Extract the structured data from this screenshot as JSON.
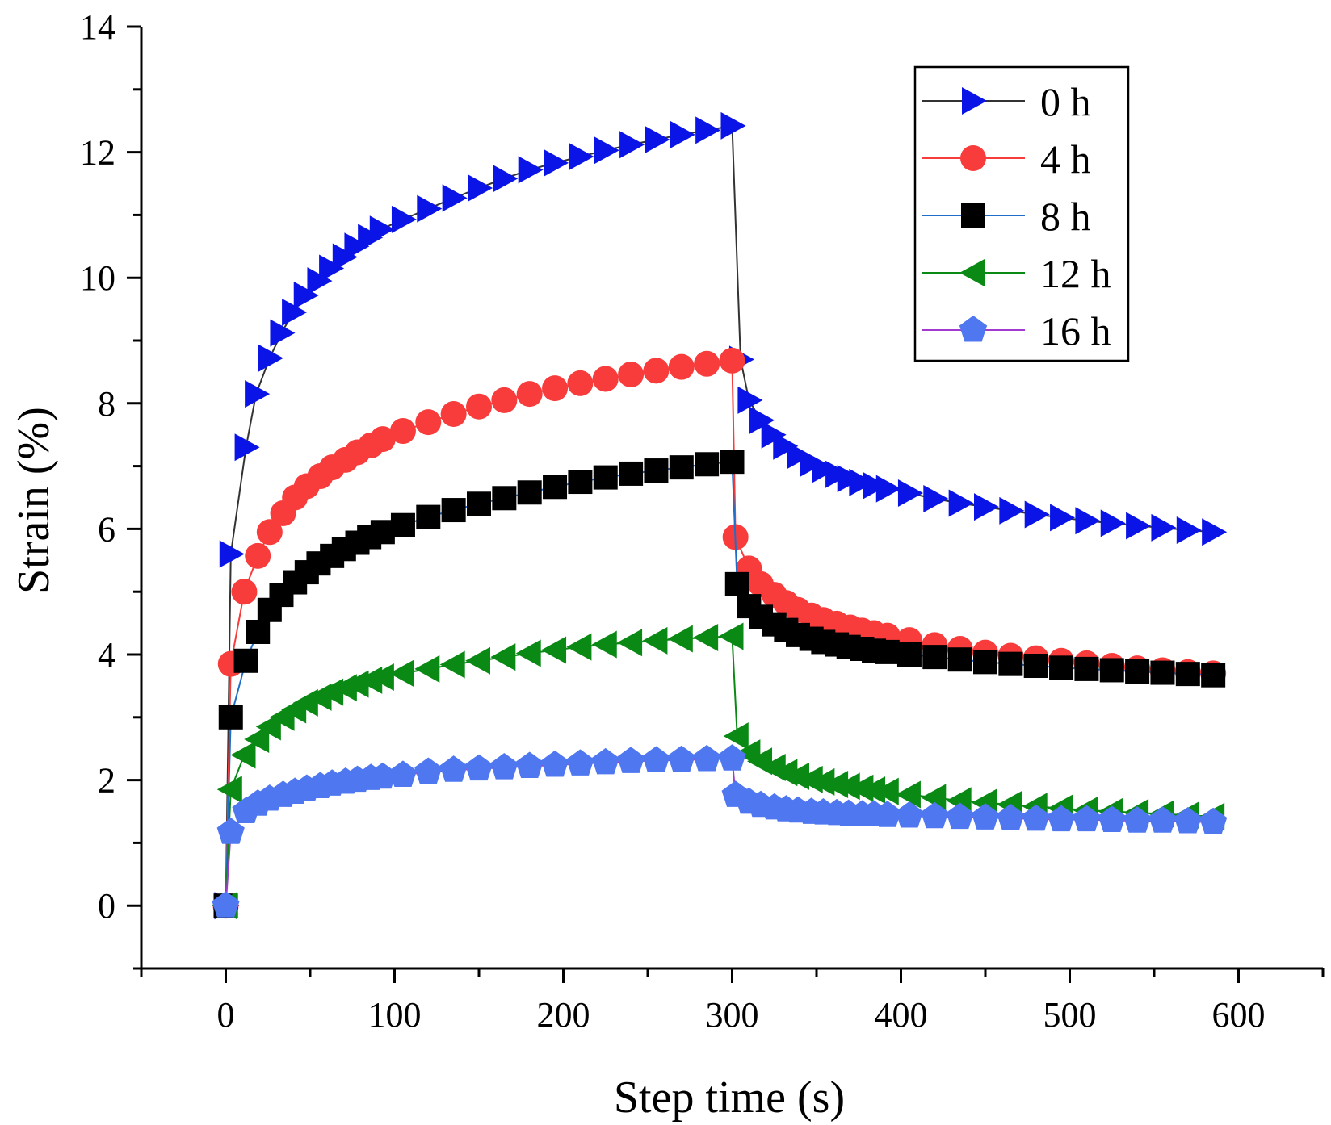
{
  "chart_data": {
    "type": "line",
    "title": "",
    "xlabel": "Step time (s)",
    "ylabel": "Strain (%)",
    "xlim": [
      -50,
      650
    ],
    "ylim": [
      -1,
      14
    ],
    "xticks": [
      0,
      100,
      200,
      300,
      400,
      500,
      600
    ],
    "yticks": [
      0,
      2,
      4,
      6,
      8,
      10,
      12,
      14
    ],
    "xtick_labels": [
      "0",
      "100",
      "200",
      "300",
      "400",
      "500",
      "600"
    ],
    "ytick_labels": [
      "0",
      "2",
      "4",
      "6",
      "8",
      "10",
      "12",
      "14"
    ],
    "legend_position": "top-right",
    "grid": false,
    "series": [
      {
        "name": "0 h",
        "marker": "triangle-right",
        "color": "#0a14e6",
        "line_color": "#333333",
        "x": [
          0,
          3,
          12,
          18,
          26,
          33,
          40,
          47,
          55,
          62,
          70,
          77,
          85,
          92,
          105,
          120,
          135,
          150,
          165,
          180,
          195,
          210,
          225,
          240,
          255,
          270,
          285,
          300,
          305,
          310,
          317,
          324,
          331,
          339,
          347,
          354,
          362,
          369,
          376,
          384,
          392,
          405,
          420,
          435,
          450,
          465,
          480,
          495,
          510,
          525,
          540,
          555,
          570,
          585
        ],
        "values": [
          0,
          5.6,
          7.3,
          8.15,
          8.72,
          9.12,
          9.45,
          9.72,
          9.95,
          10.15,
          10.33,
          10.5,
          10.64,
          10.77,
          10.93,
          11.1,
          11.27,
          11.43,
          11.58,
          11.72,
          11.83,
          11.93,
          12.03,
          12.12,
          12.2,
          12.28,
          12.35,
          12.42,
          8.7,
          8.05,
          7.73,
          7.5,
          7.32,
          7.17,
          7.05,
          6.95,
          6.87,
          6.8,
          6.74,
          6.69,
          6.64,
          6.57,
          6.48,
          6.41,
          6.35,
          6.29,
          6.23,
          6.18,
          6.13,
          6.09,
          6.05,
          6.02,
          5.98,
          5.95
        ]
      },
      {
        "name": "4 h",
        "marker": "circle",
        "color": "#f83c3c",
        "line_color": "#f83c3c",
        "x": [
          0,
          3,
          11,
          19,
          26,
          34,
          41,
          48,
          56,
          63,
          71,
          78,
          86,
          93,
          105,
          120,
          135,
          150,
          165,
          180,
          195,
          210,
          225,
          240,
          255,
          270,
          285,
          300,
          302,
          310,
          317,
          325,
          332,
          339,
          347,
          354,
          362,
          370,
          377,
          384,
          392,
          405,
          420,
          435,
          450,
          465,
          480,
          495,
          510,
          525,
          540,
          555,
          570,
          585
        ],
        "values": [
          0,
          3.85,
          5.0,
          5.57,
          5.95,
          6.25,
          6.5,
          6.68,
          6.84,
          6.98,
          7.1,
          7.22,
          7.33,
          7.43,
          7.56,
          7.7,
          7.83,
          7.95,
          8.05,
          8.15,
          8.24,
          8.32,
          8.39,
          8.46,
          8.52,
          8.58,
          8.63,
          8.68,
          5.87,
          5.37,
          5.12,
          4.95,
          4.82,
          4.71,
          4.62,
          4.55,
          4.49,
          4.43,
          4.38,
          4.34,
          4.3,
          4.23,
          4.15,
          4.09,
          4.03,
          3.98,
          3.94,
          3.9,
          3.86,
          3.82,
          3.78,
          3.75,
          3.72,
          3.7
        ]
      },
      {
        "name": "8 h",
        "marker": "square",
        "color": "#000000",
        "line_color": "#1f6fc8",
        "x": [
          0,
          3,
          12,
          19,
          26,
          33,
          41,
          48,
          55,
          63,
          70,
          78,
          85,
          93,
          105,
          120,
          135,
          150,
          165,
          180,
          195,
          210,
          225,
          240,
          255,
          270,
          285,
          300,
          303,
          310,
          317,
          325,
          332,
          339,
          347,
          354,
          362,
          369,
          377,
          384,
          392,
          405,
          420,
          435,
          450,
          465,
          480,
          495,
          510,
          525,
          540,
          555,
          570,
          585
        ],
        "values": [
          0,
          3.0,
          3.9,
          4.36,
          4.71,
          4.95,
          5.15,
          5.31,
          5.45,
          5.57,
          5.68,
          5.78,
          5.87,
          5.95,
          6.06,
          6.19,
          6.3,
          6.4,
          6.49,
          6.58,
          6.67,
          6.75,
          6.82,
          6.88,
          6.93,
          6.98,
          7.03,
          7.07,
          5.12,
          4.77,
          4.6,
          4.48,
          4.39,
          4.31,
          4.25,
          4.2,
          4.16,
          4.12,
          4.09,
          4.06,
          4.04,
          4.0,
          3.96,
          3.92,
          3.88,
          3.85,
          3.82,
          3.79,
          3.77,
          3.75,
          3.73,
          3.71,
          3.69,
          3.67
        ]
      },
      {
        "name": "12 h",
        "marker": "triangle-left",
        "color": "#0a8a14",
        "line_color": "#0a8a14",
        "x": [
          0,
          3,
          11,
          19,
          26,
          34,
          41,
          48,
          56,
          63,
          71,
          78,
          86,
          93,
          105,
          120,
          135,
          150,
          165,
          180,
          195,
          210,
          225,
          240,
          255,
          270,
          285,
          300,
          303,
          310,
          317,
          325,
          332,
          339,
          347,
          354,
          362,
          369,
          377,
          384,
          392,
          405,
          420,
          435,
          450,
          465,
          480,
          495,
          510,
          525,
          540,
          555,
          570,
          585
        ],
        "values": [
          0,
          1.85,
          2.4,
          2.65,
          2.85,
          3.0,
          3.12,
          3.23,
          3.32,
          3.4,
          3.47,
          3.53,
          3.59,
          3.64,
          3.7,
          3.77,
          3.84,
          3.9,
          3.96,
          4.02,
          4.07,
          4.12,
          4.16,
          4.19,
          4.22,
          4.25,
          4.27,
          4.29,
          2.7,
          2.43,
          2.3,
          2.2,
          2.12,
          2.06,
          2.01,
          1.97,
          1.93,
          1.9,
          1.87,
          1.84,
          1.82,
          1.77,
          1.72,
          1.67,
          1.64,
          1.61,
          1.58,
          1.55,
          1.52,
          1.5,
          1.48,
          1.46,
          1.44,
          1.42
        ]
      },
      {
        "name": "16 h",
        "marker": "pentagon",
        "color": "#4f78f0",
        "line_color": "#a23ad0",
        "x": [
          0,
          3,
          12,
          19,
          26,
          34,
          41,
          48,
          56,
          63,
          71,
          78,
          86,
          93,
          105,
          120,
          135,
          150,
          165,
          180,
          195,
          210,
          225,
          240,
          255,
          270,
          285,
          300,
          302,
          310,
          317,
          325,
          332,
          339,
          347,
          354,
          362,
          369,
          377,
          384,
          392,
          405,
          420,
          435,
          450,
          465,
          480,
          495,
          510,
          525,
          540,
          555,
          570,
          585
        ],
        "values": [
          0,
          1.17,
          1.5,
          1.62,
          1.7,
          1.76,
          1.81,
          1.86,
          1.9,
          1.94,
          1.97,
          2.0,
          2.03,
          2.05,
          2.08,
          2.13,
          2.16,
          2.18,
          2.2,
          2.22,
          2.24,
          2.26,
          2.28,
          2.3,
          2.31,
          2.32,
          2.33,
          2.34,
          1.76,
          1.65,
          1.6,
          1.56,
          1.53,
          1.51,
          1.49,
          1.48,
          1.47,
          1.46,
          1.45,
          1.45,
          1.44,
          1.43,
          1.42,
          1.41,
          1.4,
          1.39,
          1.38,
          1.37,
          1.37,
          1.36,
          1.35,
          1.35,
          1.34,
          1.33
        ]
      }
    ]
  }
}
